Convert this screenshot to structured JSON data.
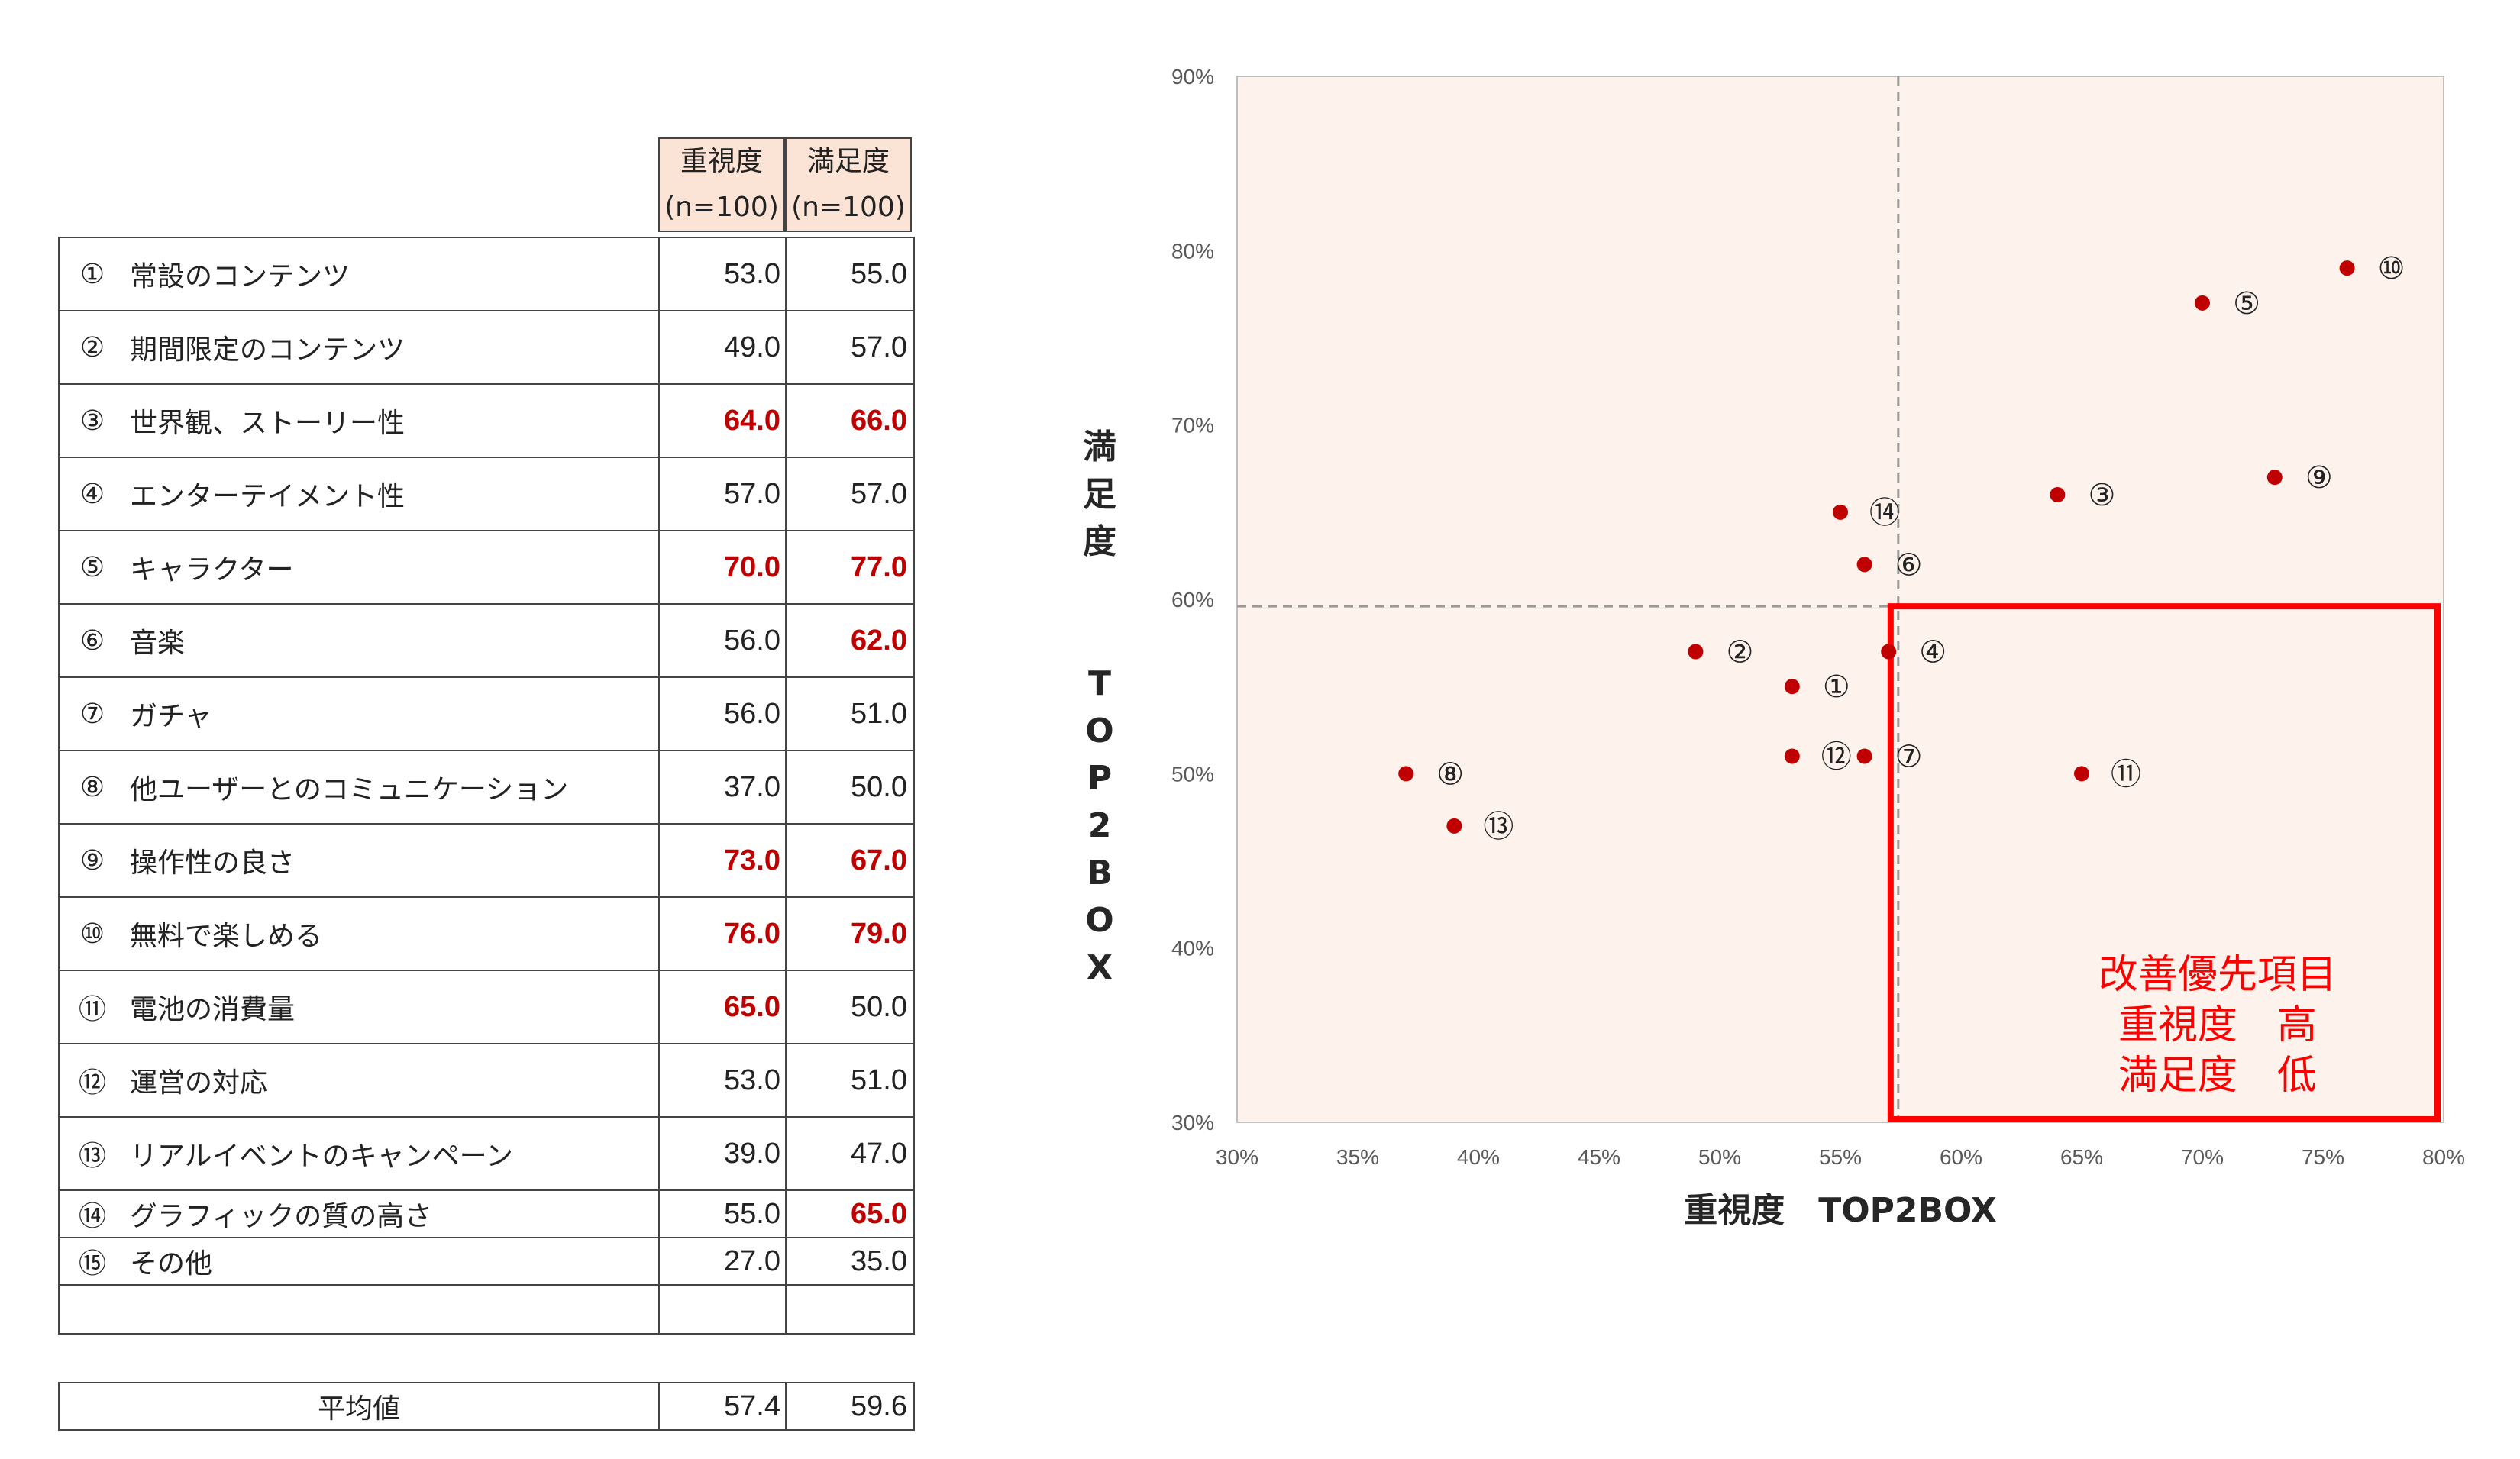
{
  "table": {
    "headers": [
      {
        "line1": "重視度",
        "line2": "(n=100)"
      },
      {
        "line1": "満足度",
        "line2": "(n=100)"
      }
    ],
    "rows": [
      {
        "num": "①",
        "name": "常設のコンテンツ",
        "importance": "53.0",
        "satisfaction": "55.0",
        "imp_red": false,
        "sat_red": false
      },
      {
        "num": "②",
        "name": "期間限定のコンテンツ",
        "importance": "49.0",
        "satisfaction": "57.0",
        "imp_red": false,
        "sat_red": false
      },
      {
        "num": "③",
        "name": "世界観、ストーリー性",
        "importance": "64.0",
        "satisfaction": "66.0",
        "imp_red": true,
        "sat_red": true
      },
      {
        "num": "④",
        "name": "エンターテイメント性",
        "importance": "57.0",
        "satisfaction": "57.0",
        "imp_red": false,
        "sat_red": false
      },
      {
        "num": "⑤",
        "name": "キャラクター",
        "importance": "70.0",
        "satisfaction": "77.0",
        "imp_red": true,
        "sat_red": true
      },
      {
        "num": "⑥",
        "name": "音楽",
        "importance": "56.0",
        "satisfaction": "62.0",
        "imp_red": false,
        "sat_red": true
      },
      {
        "num": "⑦",
        "name": "ガチャ",
        "importance": "56.0",
        "satisfaction": "51.0",
        "imp_red": false,
        "sat_red": false
      },
      {
        "num": "⑧",
        "name": "他ユーザーとのコミュニケーション",
        "importance": "37.0",
        "satisfaction": "50.0",
        "imp_red": false,
        "sat_red": false
      },
      {
        "num": "⑨",
        "name": "操作性の良さ",
        "importance": "73.0",
        "satisfaction": "67.0",
        "imp_red": true,
        "sat_red": true
      },
      {
        "num": "⑩",
        "name": "無料で楽しめる",
        "importance": "76.0",
        "satisfaction": "79.0",
        "imp_red": true,
        "sat_red": true
      },
      {
        "num": "⑪",
        "name": "電池の消費量",
        "importance": "65.0",
        "satisfaction": "50.0",
        "imp_red": true,
        "sat_red": false
      },
      {
        "num": "⑫",
        "name": "運営の対応",
        "importance": "53.0",
        "satisfaction": "51.0",
        "imp_red": false,
        "sat_red": false
      },
      {
        "num": "⑬",
        "name": "リアルイベントのキャンペーン",
        "importance": "39.0",
        "satisfaction": "47.0",
        "imp_red": false,
        "sat_red": false
      },
      {
        "num": "⑭",
        "name": "グラフィックの質の高さ",
        "importance": "55.0",
        "satisfaction": "65.0",
        "imp_red": false,
        "sat_red": true
      },
      {
        "num": "⑮",
        "name": "その他",
        "importance": "27.0",
        "satisfaction": "35.0",
        "imp_red": false,
        "sat_red": false
      }
    ],
    "average": {
      "label": "平均値",
      "importance": "57.4",
      "satisfaction": "59.6"
    }
  },
  "chart_data": {
    "type": "scatter",
    "xlabel": "重視度　TOP2BOX",
    "ylabel": "満足度　　TOP2BOX",
    "xlim": [
      30,
      80
    ],
    "ylim": [
      30,
      90
    ],
    "x_ticks": [
      "30%",
      "35%",
      "40%",
      "45%",
      "50%",
      "55%",
      "60%",
      "65%",
      "70%",
      "75%",
      "80%"
    ],
    "y_ticks": [
      "30%",
      "40%",
      "50%",
      "60%",
      "70%",
      "80%",
      "90%"
    ],
    "ref_x": 57.4,
    "ref_y": 59.6,
    "highlight_box": {
      "x_range": [
        57.4,
        80
      ],
      "y_range": [
        30,
        59.6
      ],
      "lines": [
        "改善優先項目",
        "重視度　高",
        "満足度　低"
      ]
    },
    "colors": {
      "point": "#c00000",
      "plot_bg": "#fdf3ec",
      "highlight": "#ff0000",
      "refline": "#999999"
    },
    "points": [
      {
        "label": "①",
        "x": 53,
        "y": 55
      },
      {
        "label": "②",
        "x": 49,
        "y": 57
      },
      {
        "label": "③",
        "x": 64,
        "y": 66
      },
      {
        "label": "④",
        "x": 57,
        "y": 57
      },
      {
        "label": "⑤",
        "x": 70,
        "y": 77
      },
      {
        "label": "⑥",
        "x": 56,
        "y": 62
      },
      {
        "label": "⑦",
        "x": 56,
        "y": 51
      },
      {
        "label": "⑧",
        "x": 37,
        "y": 50
      },
      {
        "label": "⑨",
        "x": 73,
        "y": 67
      },
      {
        "label": "⑩",
        "x": 76,
        "y": 79
      },
      {
        "label": "⑪",
        "x": 65,
        "y": 50
      },
      {
        "label": "⑫",
        "x": 53,
        "y": 51
      },
      {
        "label": "⑬",
        "x": 39,
        "y": 47
      },
      {
        "label": "⑭",
        "x": 55,
        "y": 65
      }
    ]
  }
}
